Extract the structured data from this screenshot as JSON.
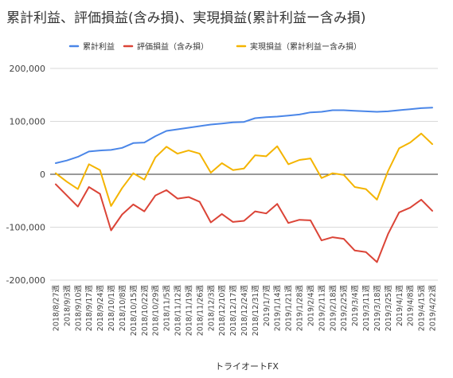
{
  "chart_data": {
    "type": "line",
    "title": "累計利益、評価損益(含み損)、実現損益(累計利益ー含み損)",
    "xlabel": "トライオートFX",
    "ylabel": "",
    "ylim": [
      -200000,
      200000
    ],
    "yticks": [
      200000,
      100000,
      0,
      -100000,
      -200000
    ],
    "ytick_labels": [
      "200,000",
      "100,000",
      "0",
      "-100,000",
      "-200,000"
    ],
    "grid": true,
    "legend_position": "top",
    "x_tick_labels": [
      "2018/8/27週",
      "2018/9/3週",
      "2018/9/10週",
      "2018/9/17週",
      "2018/9/24週",
      "2018/10/1週",
      "2018/10/8週",
      "2018/10/15週",
      "2018/10/22週",
      "2018/10/29週",
      "2018/11/5週",
      "2018/11/12週",
      "2018/11/19週",
      "2018/11/26週",
      "2018/12/3週",
      "2018/12/10週",
      "2018/12/17週",
      "2018/12/24週",
      "2018/12/31週",
      "2019/1/7週",
      "2019/1/14週",
      "2019/1/21週",
      "2019/1/28週",
      "2019/2/4週",
      "2019/2/11週",
      "2019/2/18週",
      "2019/2/25週",
      "2019/3/4週",
      "2019/3/11週",
      "2019/3/18週",
      "2019/3/25週",
      "2019/4/1週",
      "2019/4/8週",
      "2019/4/15週",
      "2019/4/22週"
    ],
    "series": [
      {
        "name": "累計利益",
        "color": "#4a86e8",
        "values": [
          21000,
          26000,
          33000,
          43000,
          45000,
          46000,
          50000,
          59000,
          60000,
          72000,
          82000,
          85000,
          88000,
          91000,
          94000,
          96000,
          98000,
          99000,
          106000,
          108000,
          109000,
          111000,
          113000,
          117000,
          118000,
          121000,
          121000,
          120000,
          119000,
          118000,
          119000,
          121000,
          123000,
          125000,
          126000
        ]
      },
      {
        "name": "評価損益（含み損）",
        "color": "#db4437",
        "values": [
          -19000,
          -40000,
          -61000,
          -24000,
          -37000,
          -106000,
          -76000,
          -57000,
          -70000,
          -40000,
          -30000,
          -46000,
          -43000,
          -52000,
          -91000,
          -75000,
          -90000,
          -88000,
          -70000,
          -74000,
          -56000,
          -92000,
          -86000,
          -87000,
          -125000,
          -119000,
          -122000,
          -144000,
          -147000,
          -166000,
          -113000,
          -72000,
          -63000,
          -48000,
          -69000
        ]
      },
      {
        "name": "実現損益（累計利益ー含み損）",
        "color": "#f4b400",
        "values": [
          2000,
          -14000,
          -28000,
          19000,
          8000,
          -60000,
          -26000,
          2000,
          -10000,
          32000,
          52000,
          39000,
          45000,
          39000,
          3000,
          21000,
          8000,
          11000,
          36000,
          34000,
          53000,
          19000,
          27000,
          30000,
          -7000,
          2000,
          -1000,
          -24000,
          -28000,
          -48000,
          6000,
          49000,
          60000,
          77000,
          57000
        ]
      }
    ]
  }
}
